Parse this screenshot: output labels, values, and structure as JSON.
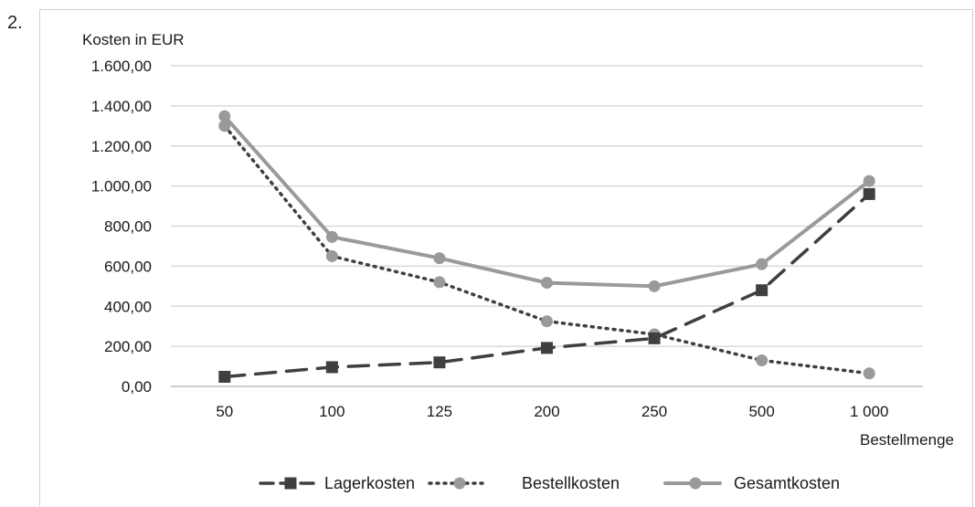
{
  "item_number": "2.",
  "chart_data": {
    "type": "line",
    "ylabel": "Kosten in EUR",
    "xlabel": "Bestellmenge",
    "categories": [
      "50",
      "100",
      "125",
      "200",
      "250",
      "500",
      "1 000"
    ],
    "ylim": [
      0,
      1600
    ],
    "yticks": [
      "0,00",
      "200,00",
      "400,00",
      "600,00",
      "800,00",
      "1.000,00",
      "1.200,00",
      "1.400,00",
      "1.600,00"
    ],
    "grid": true,
    "legend_position": "bottom",
    "series": [
      {
        "name": "Lagerkosten",
        "values": [
          48,
          96,
          120,
          192,
          240,
          480,
          960
        ],
        "color": "#3f3f3f",
        "line_style": "dashed",
        "marker": "square"
      },
      {
        "name": "Bestellkosten",
        "values": [
          1300,
          650,
          520,
          325,
          260,
          130,
          65
        ],
        "color": "#3f3f3f",
        "marker_color": "#9a9a9a",
        "line_style": "dotted",
        "marker": "circle"
      },
      {
        "name": "Gesamtkosten",
        "values": [
          1348,
          746,
          640,
          517,
          500,
          610,
          1025
        ],
        "color": "#9a9a9a",
        "line_style": "solid",
        "marker": "circle"
      }
    ]
  }
}
